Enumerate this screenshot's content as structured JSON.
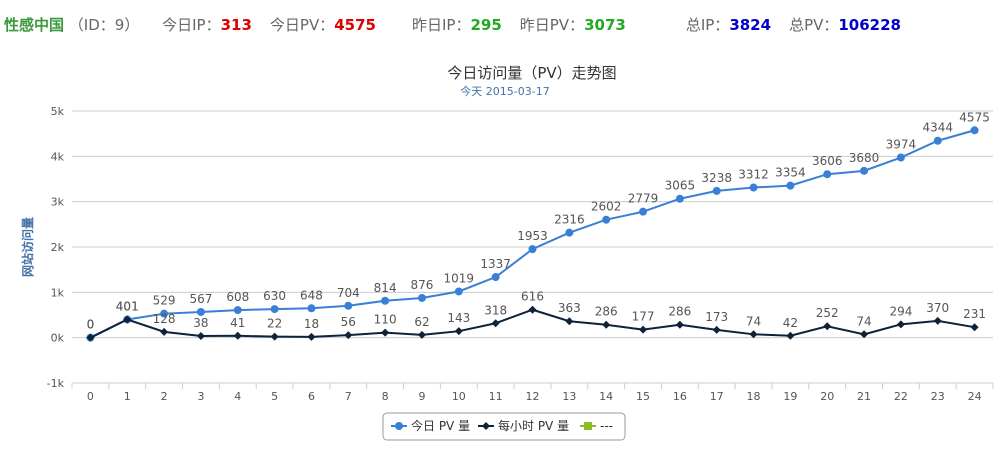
{
  "header": {
    "site": "性感中国",
    "id": "（ID：9）",
    "stats": [
      {
        "label": "今日IP：",
        "value": "313"
      },
      {
        "label": "今日PV：",
        "value": "4575"
      },
      {
        "label": "昨日IP：",
        "value": "295"
      },
      {
        "label": "昨日PV：",
        "value": "3073"
      },
      {
        "label": "总IP：",
        "value": "3824"
      },
      {
        "label": "总PV：",
        "value": "106228"
      }
    ]
  },
  "chart_data": {
    "type": "line",
    "title": "今日访问量（PV）走势图",
    "subtitle": "今天 2015-03-17",
    "y_label": "网站访问量",
    "categories": [
      "0",
      "1",
      "2",
      "3",
      "4",
      "5",
      "6",
      "7",
      "8",
      "9",
      "10",
      "11",
      "12",
      "13",
      "14",
      "15",
      "16",
      "17",
      "18",
      "19",
      "20",
      "21",
      "22",
      "23",
      "24"
    ],
    "series": [
      {
        "name": "今日 PV 量",
        "color": "#3a7fd5",
        "values": [
          0,
          401,
          529,
          567,
          608,
          630,
          648,
          704,
          814,
          876,
          1019,
          1337,
          1953,
          2316,
          2602,
          2779,
          3065,
          3238,
          3312,
          3354,
          3606,
          3680,
          3974,
          4344,
          4575
        ]
      },
      {
        "name": "每小时 PV 量",
        "color": "#0d233a",
        "values": [
          0,
          401,
          128,
          38,
          41,
          22,
          18,
          56,
          110,
          62,
          143,
          318,
          616,
          363,
          286,
          177,
          286,
          173,
          74,
          42,
          252,
          74,
          294,
          370,
          231
        ]
      },
      {
        "name": "---",
        "color": "#8bbc21",
        "values": [
          null,
          null,
          null,
          null,
          null,
          null,
          null,
          null,
          null,
          null,
          null,
          null,
          null,
          null,
          null,
          null,
          null,
          null,
          null,
          null,
          null,
          null,
          null,
          null,
          null
        ]
      }
    ],
    "ylim": [
      -1000,
      5000
    ],
    "yticks": [
      {
        "value": -1000,
        "label": "-1k"
      },
      {
        "value": 0,
        "label": "0k"
      },
      {
        "value": 1000,
        "label": "1k"
      },
      {
        "value": 2000,
        "label": "2k"
      },
      {
        "value": 3000,
        "label": "3k"
      },
      {
        "value": 4000,
        "label": "4k"
      },
      {
        "value": 5000,
        "label": "5k"
      }
    ],
    "grid": true,
    "legend": "bottom"
  }
}
